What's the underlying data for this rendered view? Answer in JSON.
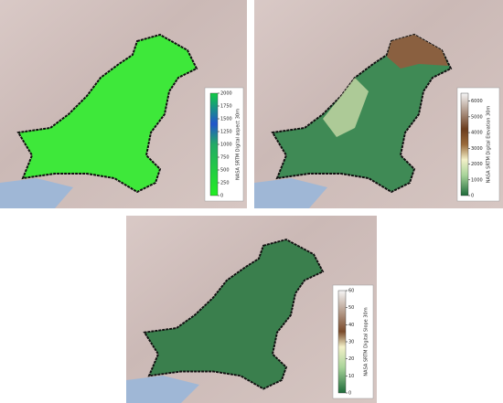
{
  "maps": [
    {
      "colorbar": {
        "label": "NASA SRTM Digital aspect 30m",
        "lim": [
          0,
          2000
        ],
        "ticks": [
          0,
          250,
          500,
          750,
          1000,
          1250,
          1500,
          1750,
          2000
        ]
      }
    },
    {
      "colorbar": {
        "label": "NASA SRTM Digital Elevation 30m",
        "lim": [
          0,
          6500
        ],
        "ticks": [
          0,
          1000,
          2000,
          3000,
          4000,
          5000,
          6000
        ]
      }
    },
    {
      "colorbar": {
        "label": "NASA SRTM Digital Slope 30m",
        "lim": [
          0,
          60
        ],
        "ticks": [
          0,
          10,
          20,
          30,
          40,
          50,
          60
        ]
      }
    }
  ]
}
